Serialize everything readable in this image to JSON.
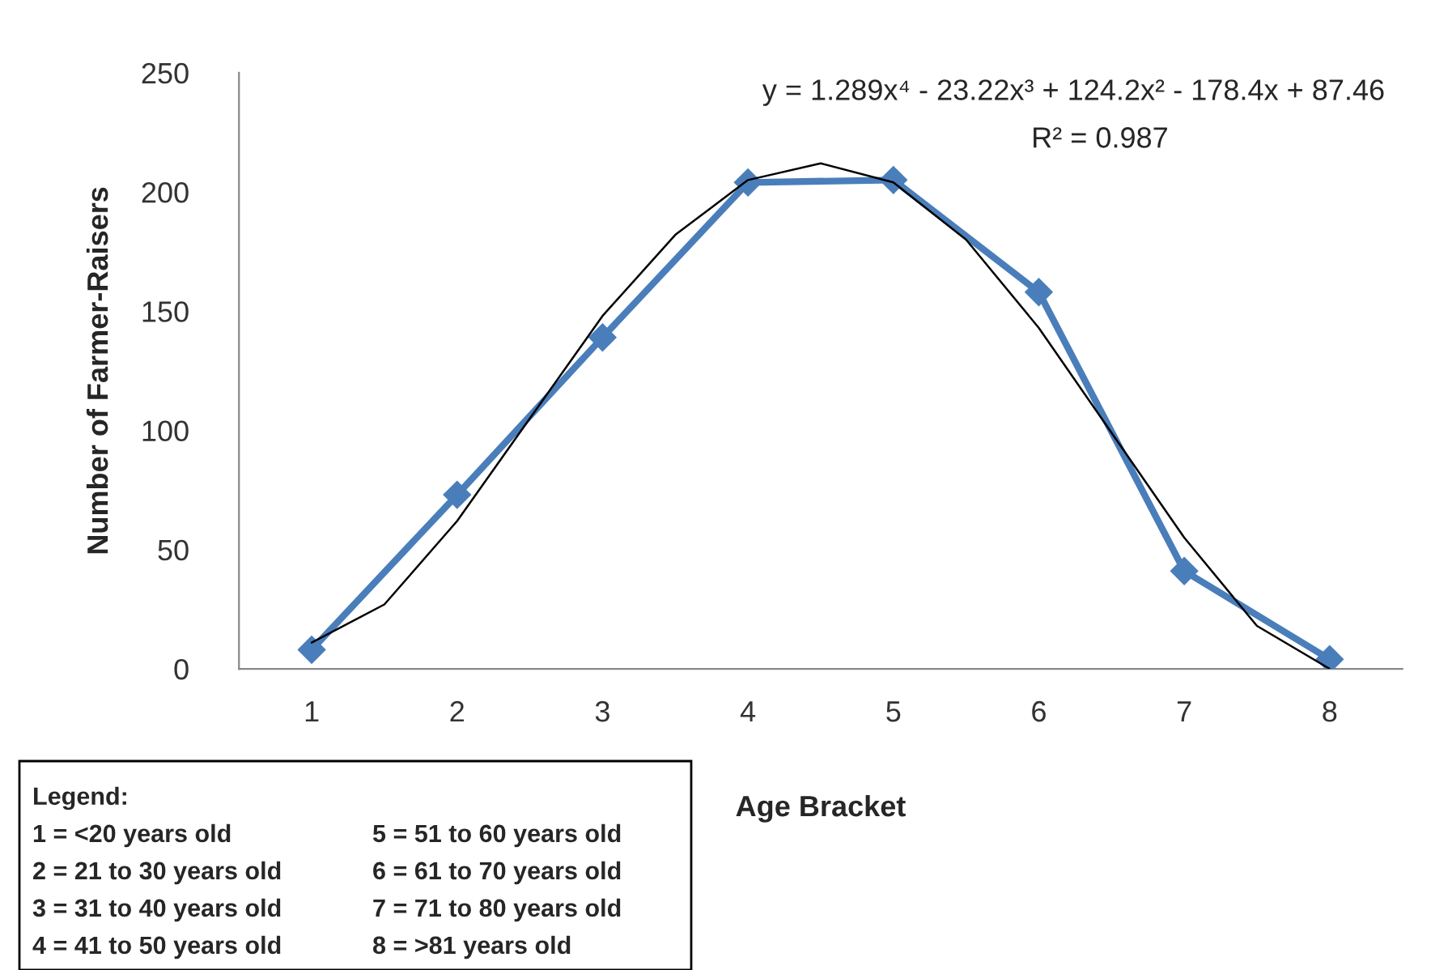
{
  "chart_data": {
    "type": "line",
    "xlabel": "Age Bracket",
    "ylabel": "Number of Farmer-Raisers",
    "x": [
      1,
      2,
      3,
      4,
      5,
      6,
      7,
      8
    ],
    "series": [
      {
        "color": "#4a7ebb",
        "marker": "diamond",
        "line_style": "solid",
        "values": [
          8,
          73,
          139,
          204,
          205,
          158,
          41,
          4
        ]
      },
      {
        "color": "#000000",
        "marker": "none",
        "line_style": "solid",
        "x": [
          1,
          1.5,
          2,
          2.5,
          3,
          3.5,
          4,
          4.5,
          5,
          5.5,
          6,
          6.5,
          7,
          7.5,
          8
        ],
        "values": [
          11,
          27,
          62,
          105,
          148,
          182,
          205,
          212,
          204,
          180,
          143,
          99,
          55,
          18,
          0
        ]
      }
    ],
    "xlim": [
      0.5,
      8.5
    ],
    "xticks": [
      1,
      2,
      3,
      4,
      5,
      6,
      7,
      8
    ],
    "ylim": [
      0,
      250
    ],
    "yticks": [
      0,
      50,
      100,
      150,
      200,
      250
    ],
    "grid": false,
    "annotations": [
      "y = 1.289x⁴ - 23.22x³ + 124.2x² - 178.4x + 87.46",
      "R² = 0.987",
      "Legend:",
      "1 = <20 years old",
      "2 = 21 to 30 years old",
      "3 = 31 to 40 years old",
      "4 = 41 to 50 years old",
      "5 = 51 to 60 years old",
      "6 = 61 to 70 years old",
      "7 = 71 to 80 years old",
      "8 = >81 years old"
    ]
  }
}
